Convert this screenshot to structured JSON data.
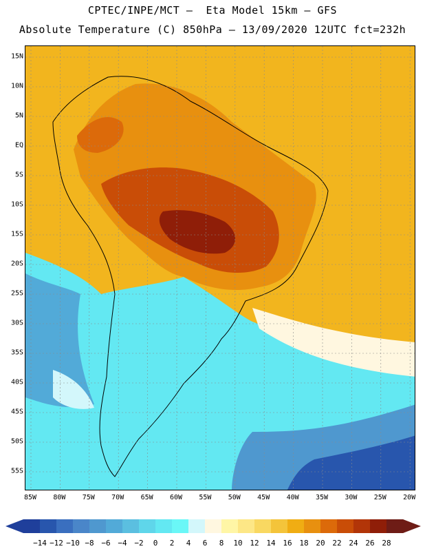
{
  "title_line1": "CPTEC/INPE/MCT –  Eta Model 15km – GFS",
  "title_line2": "Absolute Temperature (C) 850hPa – 13/09/2020 12UTC fct=232h",
  "lat_labels": [
    "15N",
    "10N",
    "5N",
    "EQ",
    "5S",
    "10S",
    "15S",
    "20S",
    "25S",
    "30S",
    "35S",
    "40S",
    "45S",
    "50S",
    "55S"
  ],
  "lon_labels": [
    "85W",
    "80W",
    "75W",
    "70W",
    "65W",
    "60W",
    "55W",
    "50W",
    "45W",
    "40W",
    "35W",
    "30W",
    "25W",
    "20W"
  ],
  "colorbar": {
    "labels": [
      "-14",
      "-12",
      "-10",
      "-8",
      "-6",
      "-4",
      "-2",
      "0",
      "2",
      "4",
      "6",
      "8",
      "10",
      "12",
      "14",
      "16",
      "18",
      "20",
      "22",
      "24",
      "26",
      "28"
    ],
    "colors": [
      "#1f3f9b",
      "#2856ad",
      "#3a6fbf",
      "#4a86c9",
      "#4f98cf",
      "#52aad8",
      "#5bbfe0",
      "#5fd6ea",
      "#63e8f2",
      "#6af7f7",
      "#d3f7fb",
      "#fff7e0",
      "#fff6a6",
      "#fde786",
      "#f9d861",
      "#f4c43a",
      "#f0ad13",
      "#e8900f",
      "#dc6a0a",
      "#c94d07",
      "#b23508",
      "#8f1e08",
      "#6e1c16"
    ]
  }
}
